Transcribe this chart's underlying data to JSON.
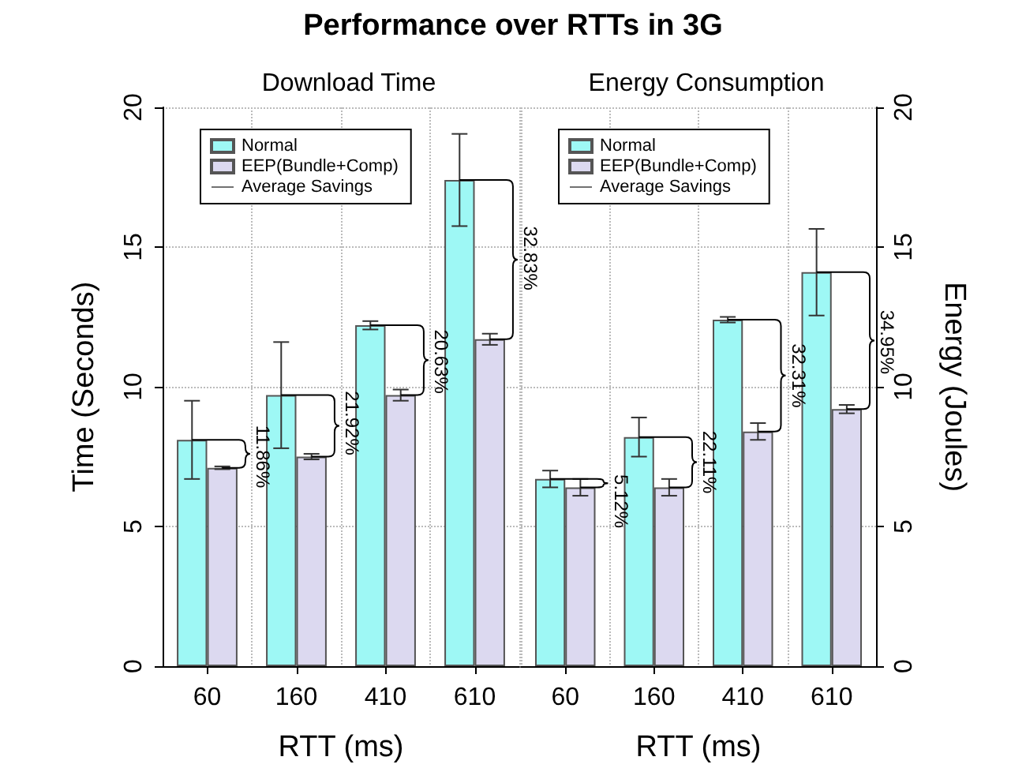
{
  "chart_data": [
    {
      "type": "bar",
      "title": "Performance over RTTs in 3G",
      "subtitle": "Download Time",
      "xlabel": "RTT (ms)",
      "ylabel": "Time (Seconds)",
      "categories": [
        "60",
        "160",
        "410",
        "610"
      ],
      "series": [
        {
          "name": "Normal",
          "color": "#9ef8f5",
          "values": [
            8.1,
            9.7,
            12.2,
            17.4
          ],
          "errors": [
            1.4,
            1.9,
            0.15,
            1.65
          ]
        },
        {
          "name": "EEP(Bundle+Comp)",
          "color": "#dcd9f0",
          "values": [
            7.1,
            7.5,
            9.7,
            11.7
          ],
          "errors": [
            0.05,
            0.1,
            0.2,
            0.2
          ]
        },
        {
          "name": "Average Savings",
          "type": "line",
          "color": "#000000",
          "values": [
            null,
            null,
            null,
            null
          ]
        }
      ],
      "annotations": [
        {
          "text": "11.86%",
          "x": "60",
          "y": 7.5
        },
        {
          "text": "21.92%",
          "x": "160",
          "y": 8.7
        },
        {
          "text": "20.63%",
          "x": "410",
          "y": 10.9
        },
        {
          "text": "32.83%",
          "x": "610",
          "y": 14.6
        }
      ],
      "ylim": [
        0,
        20
      ],
      "yticks": [
        0,
        5,
        10,
        15,
        20
      ],
      "grid": true,
      "legend": "top left"
    },
    {
      "type": "bar",
      "subtitle": "Energy Consumption",
      "xlabel": "RTT (ms)",
      "ylabel": "Energy (Joules)",
      "categories": [
        "60",
        "160",
        "410",
        "610"
      ],
      "series": [
        {
          "name": "Normal",
          "color": "#9ef8f5",
          "values": [
            6.7,
            8.2,
            12.4,
            14.1
          ],
          "errors": [
            0.3,
            0.7,
            0.1,
            1.55
          ]
        },
        {
          "name": "EEP(Bundle+Comp)",
          "color": "#dcd9f0",
          "values": [
            6.4,
            6.4,
            8.4,
            9.2
          ],
          "errors": [
            0.3,
            0.3,
            0.3,
            0.15
          ]
        },
        {
          "name": "Average Savings",
          "type": "line",
          "color": "#000000",
          "values": [
            null,
            null,
            null,
            null
          ]
        }
      ],
      "annotations": [
        {
          "text": "5.12%",
          "x": "60",
          "y": 5.9
        },
        {
          "text": "22.11%",
          "x": "160",
          "y": 7.3
        },
        {
          "text": "32.31%",
          "x": "410",
          "y": 10.4
        },
        {
          "text": "34.95%",
          "x": "610",
          "y": 11.6
        }
      ],
      "ylim": [
        0,
        20
      ],
      "yticks": [
        0,
        5,
        10,
        15,
        20
      ],
      "grid": true,
      "legend": "top left"
    }
  ]
}
